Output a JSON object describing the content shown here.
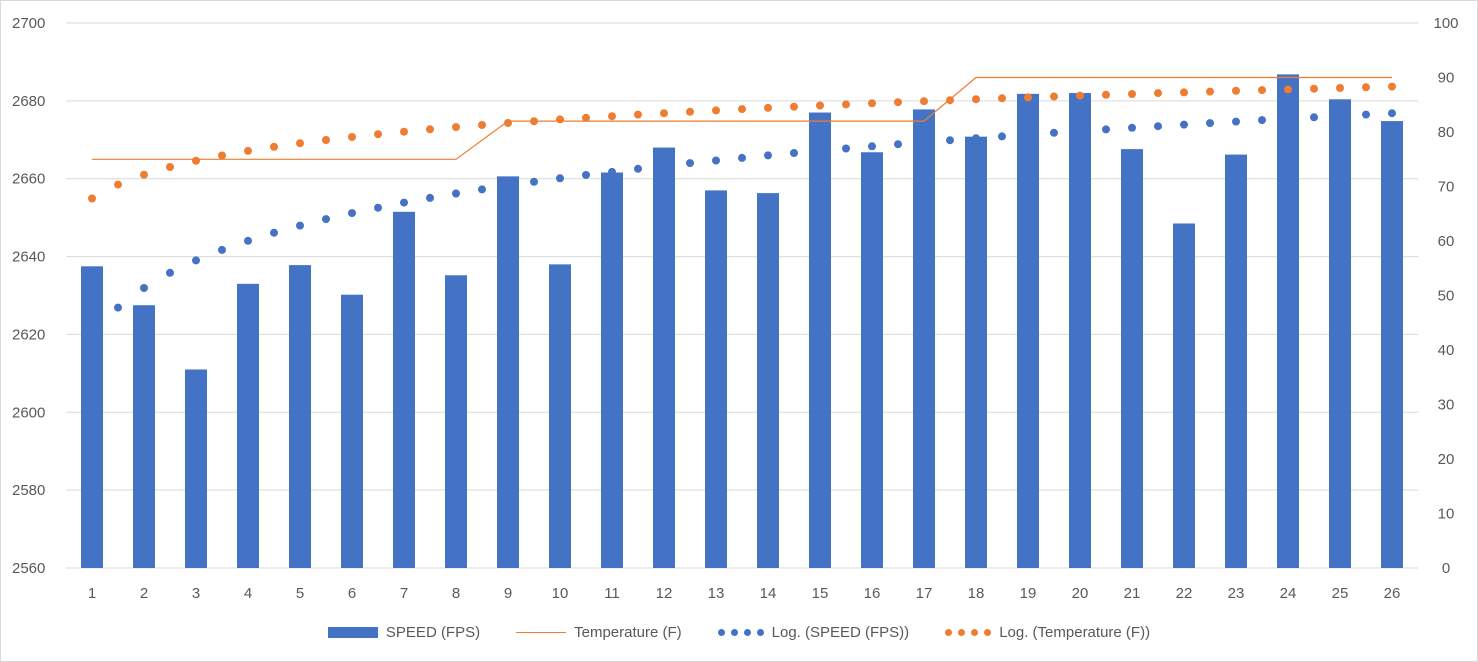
{
  "colors": {
    "bar": "#4472c4",
    "line": "#ed7d31",
    "grid": "#d9d9d9",
    "text": "#595959"
  },
  "chart_data": {
    "type": "bar",
    "categories": [
      "1",
      "2",
      "3",
      "4",
      "5",
      "6",
      "7",
      "8",
      "9",
      "10",
      "11",
      "12",
      "13",
      "14",
      "15",
      "16",
      "17",
      "18",
      "19",
      "20",
      "21",
      "22",
      "23",
      "24",
      "25",
      "26"
    ],
    "series": [
      {
        "name": "SPEED (FPS)",
        "type": "bar",
        "axis": "left",
        "values": [
          2637.5,
          2627.5,
          2611,
          2633,
          2637.8,
          2630.2,
          2651.5,
          2635.2,
          2660.6,
          2638,
          2661.6,
          2668,
          2657,
          2656.3,
          2677,
          2666.8,
          2677.8,
          2670.8,
          2681.8,
          2682,
          2667.6,
          2648.5,
          2666.2,
          2686.8,
          2680.4,
          2674.8
        ]
      },
      {
        "name": "Temperature (F)",
        "type": "line",
        "axis": "right",
        "values": [
          75,
          75,
          75,
          75,
          75,
          75,
          75,
          75,
          82,
          82,
          82,
          82,
          82,
          82,
          82,
          82,
          82,
          90,
          90,
          90,
          90,
          90,
          90,
          90,
          90,
          90
        ]
      },
      {
        "name": "Log. (SPEED (FPS))",
        "type": "trendline",
        "trend": "logarithmic",
        "axis": "left",
        "coefficients": {
          "a": 2619.8,
          "b": 17.5
        }
      },
      {
        "name": "Log. (Temperature (F))",
        "type": "trendline",
        "trend": "logarithmic",
        "axis": "right",
        "coefficients": {
          "a": 67.8,
          "b": 6.3
        }
      }
    ],
    "left_axis": {
      "ylim": [
        2560,
        2700
      ],
      "ticks": [
        "2560",
        "2580",
        "2600",
        "2620",
        "2640",
        "2660",
        "2680",
        "2700"
      ]
    },
    "right_axis": {
      "ylim": [
        0,
        100
      ],
      "ticks": [
        "0",
        "10",
        "20",
        "30",
        "40",
        "50",
        "60",
        "70",
        "80",
        "90",
        "100"
      ]
    },
    "x_ticks": [
      "1",
      "2",
      "3",
      "4",
      "5",
      "6",
      "7",
      "8",
      "9",
      "10",
      "11",
      "12",
      "13",
      "14",
      "15",
      "16",
      "17",
      "18",
      "19",
      "20",
      "21",
      "22",
      "23",
      "24",
      "25",
      "26"
    ],
    "legend": {
      "position": "bottom",
      "items": [
        "SPEED (FPS)",
        "Temperature (F)",
        "Log. (SPEED (FPS))",
        "Log. (Temperature (F))"
      ]
    },
    "grid": true
  }
}
